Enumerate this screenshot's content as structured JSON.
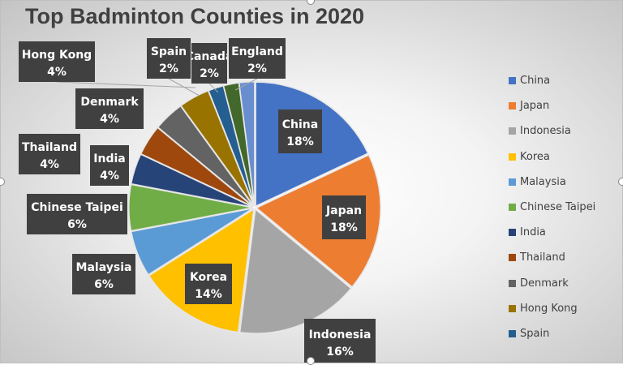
{
  "chart_data": {
    "type": "pie",
    "title": "Top Badminton Counties in 2020",
    "slices": [
      {
        "name": "China",
        "value": 18,
        "label": "18%",
        "color": "#4472C4"
      },
      {
        "name": "Japan",
        "value": 18,
        "label": "18%",
        "color": "#ED7D31"
      },
      {
        "name": "Indonesia",
        "value": 16,
        "label": "16%",
        "color": "#A5A5A5"
      },
      {
        "name": "Korea",
        "value": 14,
        "label": "14%",
        "color": "#FFC000"
      },
      {
        "name": "Malaysia",
        "value": 6,
        "label": "6%",
        "color": "#5B9BD5"
      },
      {
        "name": "Chinese Taipei",
        "value": 6,
        "label": "6%",
        "color": "#70AD47"
      },
      {
        "name": "India",
        "value": 4,
        "label": "4%",
        "color": "#264478"
      },
      {
        "name": "Thailand",
        "value": 4,
        "label": "4%",
        "color": "#9E480E"
      },
      {
        "name": "Denmark",
        "value": 4,
        "label": "4%",
        "color": "#636363"
      },
      {
        "name": "Hong Kong",
        "value": 4,
        "label": "4%",
        "color": "#997300"
      },
      {
        "name": "Spain",
        "value": 2,
        "label": "2%",
        "color": "#255E91"
      },
      {
        "name": "Canada",
        "value": 2,
        "label": "2%",
        "color": "#43682B"
      },
      {
        "name": "England",
        "value": 2,
        "label": "2%",
        "color": "#698ED0"
      }
    ],
    "legend_position": "right",
    "legend_visible": [
      "China",
      "Japan",
      "Indonesia",
      "Korea",
      "Malaysia",
      "Chinese Taipei",
      "India",
      "Thailand",
      "Denmark",
      "Hong Kong",
      "Spain"
    ]
  }
}
